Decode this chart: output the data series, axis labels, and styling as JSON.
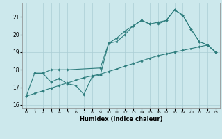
{
  "title": "",
  "xlabel": "Humidex (Indice chaleur)",
  "ylabel": "",
  "background_color": "#cce8ec",
  "grid_color": "#aacdd4",
  "line_color": "#2d7d7d",
  "xlim": [
    -0.5,
    23.5
  ],
  "ylim": [
    15.8,
    21.8
  ],
  "yticks": [
    16,
    17,
    18,
    19,
    20,
    21
  ],
  "xticks": [
    0,
    1,
    2,
    3,
    4,
    5,
    6,
    7,
    8,
    9,
    10,
    11,
    12,
    13,
    14,
    15,
    16,
    17,
    18,
    19,
    20,
    21,
    22,
    23
  ],
  "line1_x": [
    0,
    1,
    2,
    3,
    4,
    5,
    6,
    7,
    8,
    9,
    10,
    11,
    12,
    13,
    14,
    15,
    16,
    17,
    18,
    19,
    20,
    21,
    22,
    23
  ],
  "line1_y": [
    16.5,
    17.8,
    17.8,
    17.3,
    17.5,
    17.2,
    17.1,
    16.6,
    17.6,
    17.7,
    19.5,
    19.6,
    20.0,
    20.5,
    20.8,
    20.6,
    20.6,
    20.8,
    21.4,
    21.1,
    20.3,
    19.6,
    19.4,
    19.0
  ],
  "line2_x": [
    1,
    2,
    3,
    4,
    5,
    9,
    10,
    11,
    12,
    13,
    14,
    15,
    16,
    17,
    18,
    19,
    20,
    21,
    22,
    23
  ],
  "line2_y": [
    17.8,
    17.8,
    18.0,
    18.0,
    18.0,
    18.1,
    19.5,
    19.8,
    20.2,
    20.5,
    20.8,
    20.6,
    20.7,
    20.8,
    21.4,
    21.1,
    20.3,
    19.6,
    19.4,
    19.0
  ],
  "line3_x": [
    0,
    1,
    2,
    3,
    4,
    5,
    6,
    7,
    8,
    9,
    10,
    11,
    12,
    13,
    14,
    15,
    16,
    17,
    18,
    19,
    20,
    21,
    22,
    23
  ],
  "line3_y": [
    16.5,
    16.65,
    16.8,
    16.95,
    17.1,
    17.25,
    17.4,
    17.55,
    17.65,
    17.75,
    17.9,
    18.05,
    18.2,
    18.35,
    18.5,
    18.65,
    18.8,
    18.9,
    19.0,
    19.1,
    19.2,
    19.3,
    19.4,
    19.0
  ]
}
